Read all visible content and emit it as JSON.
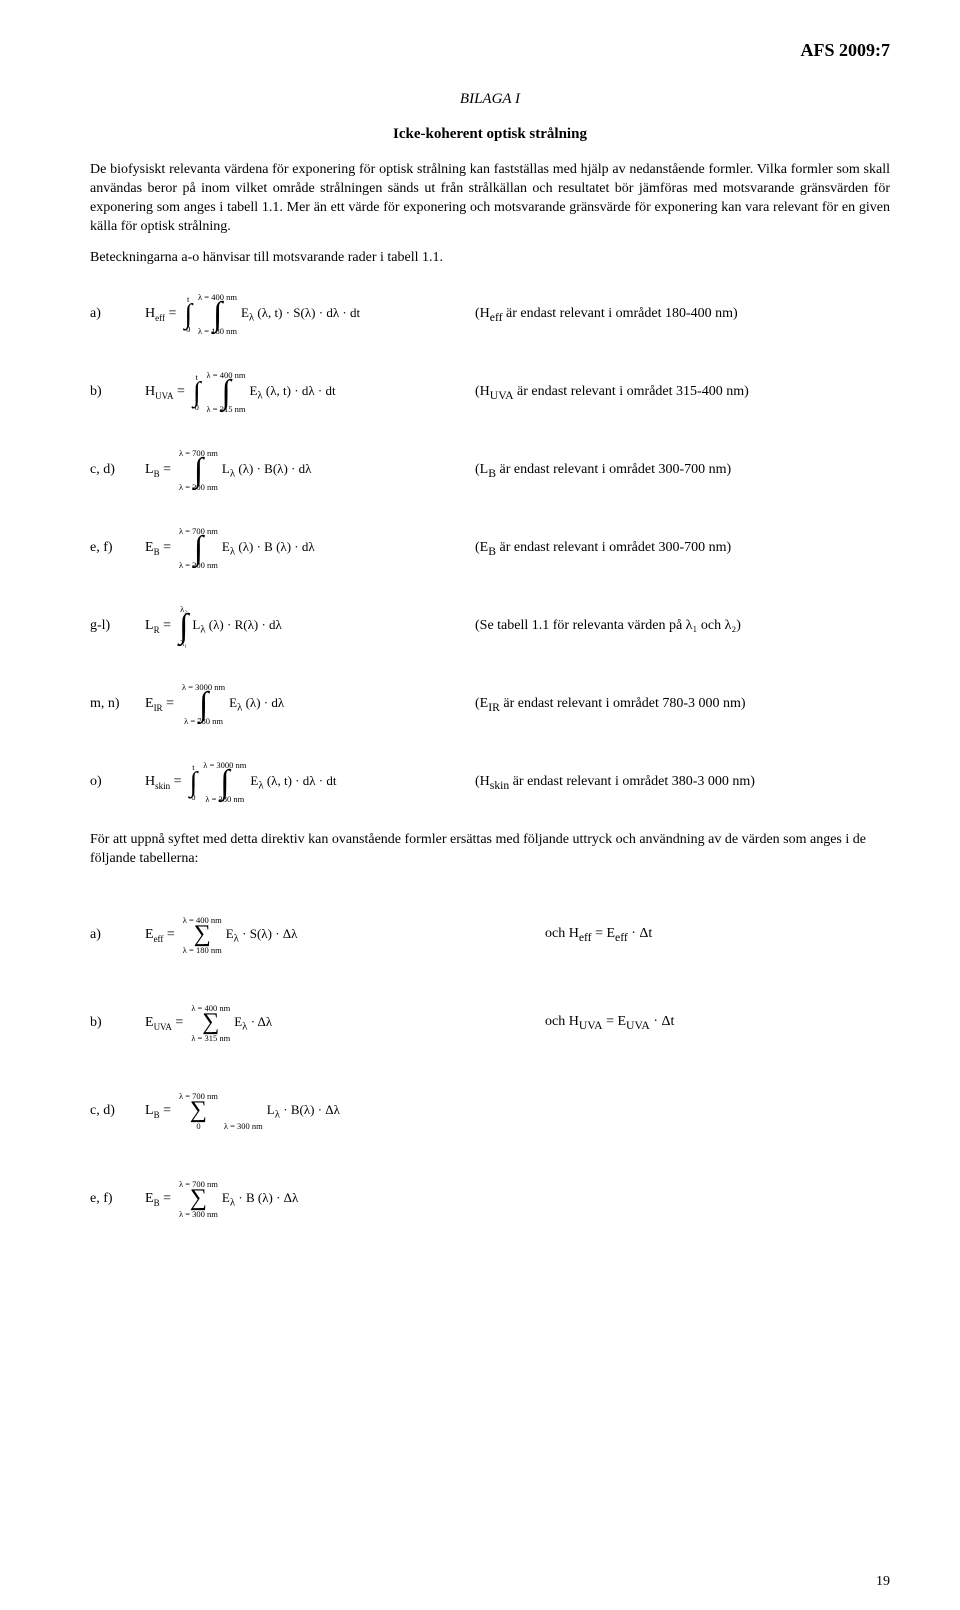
{
  "doc_header": "AFS 2009:7",
  "appendix_label": "BILAGA I",
  "title": "Icke-koherent optisk strålning",
  "intro_p1": "De biofysiskt relevanta värdena för exponering för optisk strålning kan fastställas med hjälp av nedanstående formler. Vilka formler som skall användas beror på inom vilket område strålningen sänds ut från strålkällan och resultatet bör jämföras med motsvarande gränsvärden för exponering som anges i tabell 1.1. Mer än ett värde för exponering och motsvarande gränsvärde för exponering kan vara relevant för en given källa för optisk strålning.",
  "intro_p2": "Beteckningarna a-o hänvisar till motsvarande rader i tabell 1.1.",
  "intermission": "För att uppnå syftet med detta direktiv kan ovanstående formler ersättas med följande uttryck och användning av de värden som anges i de följande tabellerna:",
  "rows": {
    "a": {
      "label": "a)",
      "lhs_sym": "H",
      "lhs_sub": "eff",
      "outer_lo": "0",
      "outer_hi": "t",
      "inner_lo": "λ = 180 nm",
      "inner_hi": "λ = 400 nm",
      "body": "E<sub>λ</sub> (λ, t) · S(λ) · dλ · dt",
      "note_prefix": "(H",
      "note_sub": "eff",
      "note_rest": " är endast relevant i området 180-400 nm)"
    },
    "b": {
      "label": "b)",
      "lhs_sym": "H",
      "lhs_sub": "UVA",
      "outer_lo": "0",
      "outer_hi": "t",
      "inner_lo": "λ = 315 nm",
      "inner_hi": "λ = 400 nm",
      "body": "E<sub>λ</sub> (λ, t) · dλ · dt",
      "note_prefix": "(H",
      "note_sub": "UVA",
      "note_rest": " är endast relevant i området 315-400 nm)"
    },
    "cd": {
      "label": "c, d)",
      "lhs_sym": "L",
      "lhs_sub": "B",
      "inner_lo": "λ = 300 nm",
      "inner_hi": "λ = 700 nm",
      "body": "L<sub>λ</sub> (λ) · B(λ) · dλ",
      "note_prefix": "(L",
      "note_sub": "B",
      "note_rest": " är endast relevant i området 300-700 nm)"
    },
    "ef": {
      "label": "e, f)",
      "lhs_sym": "E",
      "lhs_sub": "B",
      "inner_lo": "λ = 300 nm",
      "inner_hi": "λ = 700 nm",
      "body": "E<sub>λ</sub> (λ) · B (λ) · dλ",
      "note_prefix": "(E",
      "note_sub": "B",
      "note_rest": " är endast relevant i området 300-700 nm)"
    },
    "gl": {
      "label": "g-l)",
      "lhs_sym": "L",
      "lhs_sub": "R",
      "inner_lo": "λ₁",
      "inner_hi": "λ₂",
      "body": "L<sub>λ</sub> (λ) · R(λ) · dλ",
      "note": "(Se tabell 1.1 för relevanta värden på λ₁ och λ₂)"
    },
    "mn": {
      "label": "m, n)",
      "lhs_sym": "E",
      "lhs_sub": "IR",
      "inner_lo": "λ = 780 nm",
      "inner_hi": "λ = 3000 nm",
      "body": "E<sub>λ</sub> (λ) · dλ",
      "note_prefix": "(E",
      "note_sub": "IR",
      "note_rest": " är endast relevant i området 780-3 000 nm)"
    },
    "o": {
      "label": "o)",
      "lhs_sym": "H",
      "lhs_sub": "skin",
      "outer_lo": "0",
      "outer_hi": "t",
      "inner_lo": "λ = 380 nm",
      "inner_hi": "λ = 3000 nm",
      "body": "E<sub>λ</sub> (λ, t) · dλ · dt",
      "note_prefix": "(H",
      "note_sub": "skin",
      "note_rest": " är endast relevant i området 380-3 000 nm)"
    }
  },
  "sums": {
    "a": {
      "label": "a)",
      "lhs_sym": "E",
      "lhs_sub": "eff",
      "lo": "λ = 180 nm",
      "hi": "λ = 400 nm",
      "body": "E<sub>λ</sub> · S(λ) · Δλ",
      "rhs": "och H<sub>eff</sub> = E<sub>eff</sub> · Δt"
    },
    "b": {
      "label": "b)",
      "lhs_sym": "E",
      "lhs_sub": "UVA",
      "lo": "λ = 315 nm",
      "hi": "λ = 400 nm",
      "body": "E<sub>λ</sub> · Δλ",
      "rhs": "och H<sub>UVA</sub> = E<sub>UVA</sub> · Δt"
    },
    "cd": {
      "label": "c, d)",
      "lhs_sym": "L",
      "lhs_sub": "B",
      "lo": "λ = 300 nm",
      "outer_lo": "0",
      "hi": "λ = 700 nm",
      "body": "L<sub>λ</sub> · B(λ) · Δλ",
      "rhs": ""
    },
    "ef": {
      "label": "e, f)",
      "lhs_sym": "E",
      "lhs_sub": "B",
      "lo": "λ = 300 nm",
      "hi": "λ = 700 nm",
      "body": "E<sub>λ</sub> · B (λ) · Δλ",
      "rhs": ""
    }
  },
  "page_number": "19"
}
